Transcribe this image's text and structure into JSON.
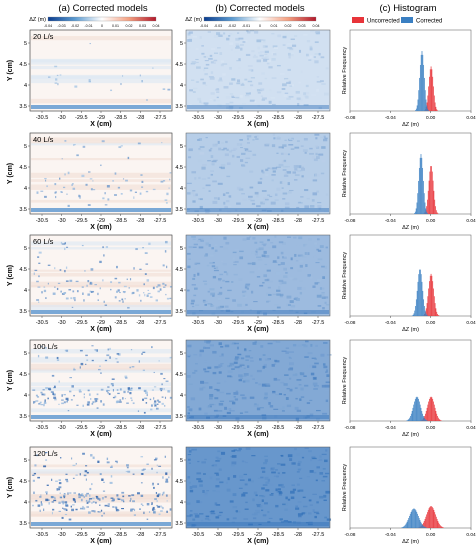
{
  "column_titles": [
    "(a) Corrected models",
    "(b) Corrected models",
    "(c) Histogram"
  ],
  "colorbar": {
    "label": "ΔZ (m)",
    "ticks": [
      "-0.04",
      "-0.03",
      "-0.02",
      "-0.01",
      "0",
      "0.01",
      "0.02",
      "0.03",
      "0.04"
    ]
  },
  "legend": {
    "items": [
      "Uncorrected",
      "Corrected"
    ],
    "colors": [
      "#e8343a",
      "#3a7fc2"
    ]
  },
  "colors": {
    "uncorrected": "#e8343a",
    "corrected": "#3a7fc2",
    "map_light": "#eef4fb",
    "map_dark": "#2f6fb8"
  },
  "map_axes": {
    "xlabel": "X (cm)",
    "ylabel": "Y (cm)",
    "xticks": [
      "-30.5",
      "-30",
      "-29.5",
      "-29",
      "-28.5",
      "-28",
      "-27.5"
    ],
    "yticks": [
      "3.5",
      "4",
      "4.5",
      "5"
    ]
  },
  "chart_data": {
    "type": "bar",
    "xlabel": "ΔZ (m)",
    "ylabel": "Relative Frequency",
    "xticks": [
      "-0.08",
      "-0.04",
      "0.00",
      "0.04"
    ],
    "xlim": [
      -0.08,
      0.04
    ],
    "series": [
      {
        "name": "Uncorrected"
      },
      {
        "name": "Corrected"
      }
    ],
    "panels": [
      {
        "flow": "20 L/s",
        "uncorrected_mean": 0.0,
        "uncorrected_sd": 0.0022,
        "uncorrected_peak": 0.55,
        "corrected_mean": -0.009,
        "corrected_sd": 0.0022,
        "corrected_peak": 0.74
      },
      {
        "flow": "40 L/s",
        "uncorrected_mean": 0.0,
        "uncorrected_sd": 0.0023,
        "uncorrected_peak": 0.6,
        "corrected_mean": -0.01,
        "corrected_sd": 0.0022,
        "corrected_peak": 0.74
      },
      {
        "flow": "60 L/s",
        "uncorrected_mean": 0.0,
        "uncorrected_sd": 0.0026,
        "uncorrected_peak": 0.52,
        "corrected_mean": -0.011,
        "corrected_sd": 0.0025,
        "corrected_peak": 0.58
      },
      {
        "flow": "100 L/s",
        "uncorrected_mean": 0.0,
        "uncorrected_sd": 0.0036,
        "uncorrected_peak": 0.3,
        "corrected_mean": -0.014,
        "corrected_sd": 0.0036,
        "corrected_peak": 0.3
      },
      {
        "flow": "120 L/s",
        "uncorrected_mean": 0.0,
        "uncorrected_sd": 0.0045,
        "uncorrected_peak": 0.27,
        "corrected_mean": -0.017,
        "corrected_sd": 0.0045,
        "corrected_peak": 0.24
      }
    ]
  }
}
